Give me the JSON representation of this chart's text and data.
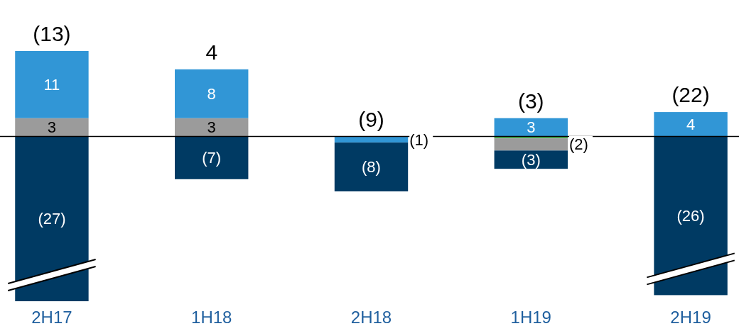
{
  "chart_data": {
    "type": "bar",
    "stacked": true,
    "categories": [
      "2H17",
      "1H18",
      "2H18",
      "1H19",
      "2H19"
    ],
    "series": [
      {
        "color": "#4caf50",
        "values": [
          null,
          null,
          null,
          -0.3,
          null
        ],
        "value_labels": [
          null,
          null,
          null,
          null,
          null
        ]
      },
      {
        "color": "#9b9b9b",
        "values": [
          3,
          3,
          null,
          -2,
          null
        ],
        "value_labels": [
          "3",
          "3",
          null,
          "(2)",
          null
        ]
      },
      {
        "color": "#3196d6",
        "values": [
          11,
          8,
          -1,
          3,
          4
        ],
        "value_labels": [
          "11",
          "8",
          "(1)",
          "3",
          "4"
        ]
      },
      {
        "color": "#003a63",
        "values": [
          -27,
          -7,
          -8,
          -3,
          -26
        ],
        "value_labels": [
          "(27)",
          "(7)",
          "(8)",
          "(3)",
          "(26)"
        ]
      }
    ],
    "totals": [
      "(13)",
      "4",
      "(9)",
      "(3)",
      "(22)"
    ]
  }
}
